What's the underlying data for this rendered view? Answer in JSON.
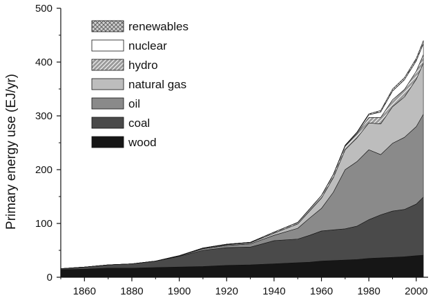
{
  "chart_data": {
    "type": "area",
    "stacked": true,
    "xlabel": "",
    "ylabel": "Primary energy use  (EJ/yr)",
    "xlim": [
      1850,
      2005
    ],
    "ylim": [
      0,
      500
    ],
    "xticks": [
      1860,
      1880,
      1900,
      1920,
      1940,
      1960,
      1980,
      2000
    ],
    "yticks": [
      0,
      100,
      200,
      300,
      400,
      500
    ],
    "grid": false,
    "legend_position": "top-left",
    "legend_order": [
      "renewables",
      "nuclear",
      "hydro",
      "natural gas",
      "oil",
      "coal",
      "wood"
    ],
    "x": [
      1850,
      1860,
      1870,
      1880,
      1890,
      1900,
      1910,
      1920,
      1930,
      1940,
      1950,
      1955,
      1960,
      1965,
      1970,
      1975,
      1980,
      1985,
      1990,
      1995,
      2000,
      2003
    ],
    "series": [
      {
        "name": "wood",
        "color": "#161616",
        "pattern": "solid",
        "values": [
          14,
          15,
          17,
          17,
          18,
          19,
          20,
          22,
          23,
          25,
          27,
          28,
          30,
          31,
          32,
          33,
          35,
          36,
          37,
          38,
          40,
          41
        ]
      },
      {
        "name": "coal",
        "color": "#4a4a4a",
        "pattern": "solid",
        "values": [
          2,
          4,
          6,
          8,
          12,
          20,
          30,
          33,
          33,
          43,
          44,
          50,
          56,
          57,
          58,
          62,
          72,
          80,
          86,
          88,
          96,
          108
        ]
      },
      {
        "name": "oil",
        "color": "#8a8a8a",
        "pattern": "solid",
        "values": [
          0,
          0,
          0,
          0,
          0,
          1,
          3,
          4,
          6,
          10,
          20,
          32,
          42,
          70,
          110,
          120,
          130,
          112,
          126,
          134,
          144,
          154
        ]
      },
      {
        "name": "natural gas",
        "color": "#bdbdbd",
        "pattern": "solid",
        "values": [
          0,
          0,
          0,
          0,
          0,
          0.2,
          1,
          1.5,
          2,
          4,
          8,
          13,
          19,
          27,
          37,
          44,
          50,
          57,
          68,
          75,
          88,
          95
        ]
      },
      {
        "name": "hydro",
        "color": "#9a9a9a",
        "pattern": "hatch",
        "values": [
          0,
          0,
          0,
          0,
          0,
          0,
          0.5,
          1,
          1,
          2,
          3,
          4,
          5,
          6,
          7,
          8,
          10,
          12,
          13,
          14,
          15,
          16
        ]
      },
      {
        "name": "nuclear",
        "color": "#ffffff",
        "pattern": "solid",
        "values": [
          0,
          0,
          0,
          0,
          0,
          0,
          0,
          0,
          0,
          0,
          0,
          0,
          0,
          0.2,
          1,
          2,
          5,
          10,
          16,
          18,
          19,
          20
        ]
      },
      {
        "name": "renewables",
        "color": "#c8c8c8",
        "pattern": "crosshatch",
        "values": [
          0,
          0,
          0,
          0,
          0,
          0,
          0,
          0,
          0,
          0,
          0,
          0,
          0,
          0,
          0.5,
          1,
          2,
          3,
          4,
          4,
          5,
          6
        ]
      }
    ]
  }
}
